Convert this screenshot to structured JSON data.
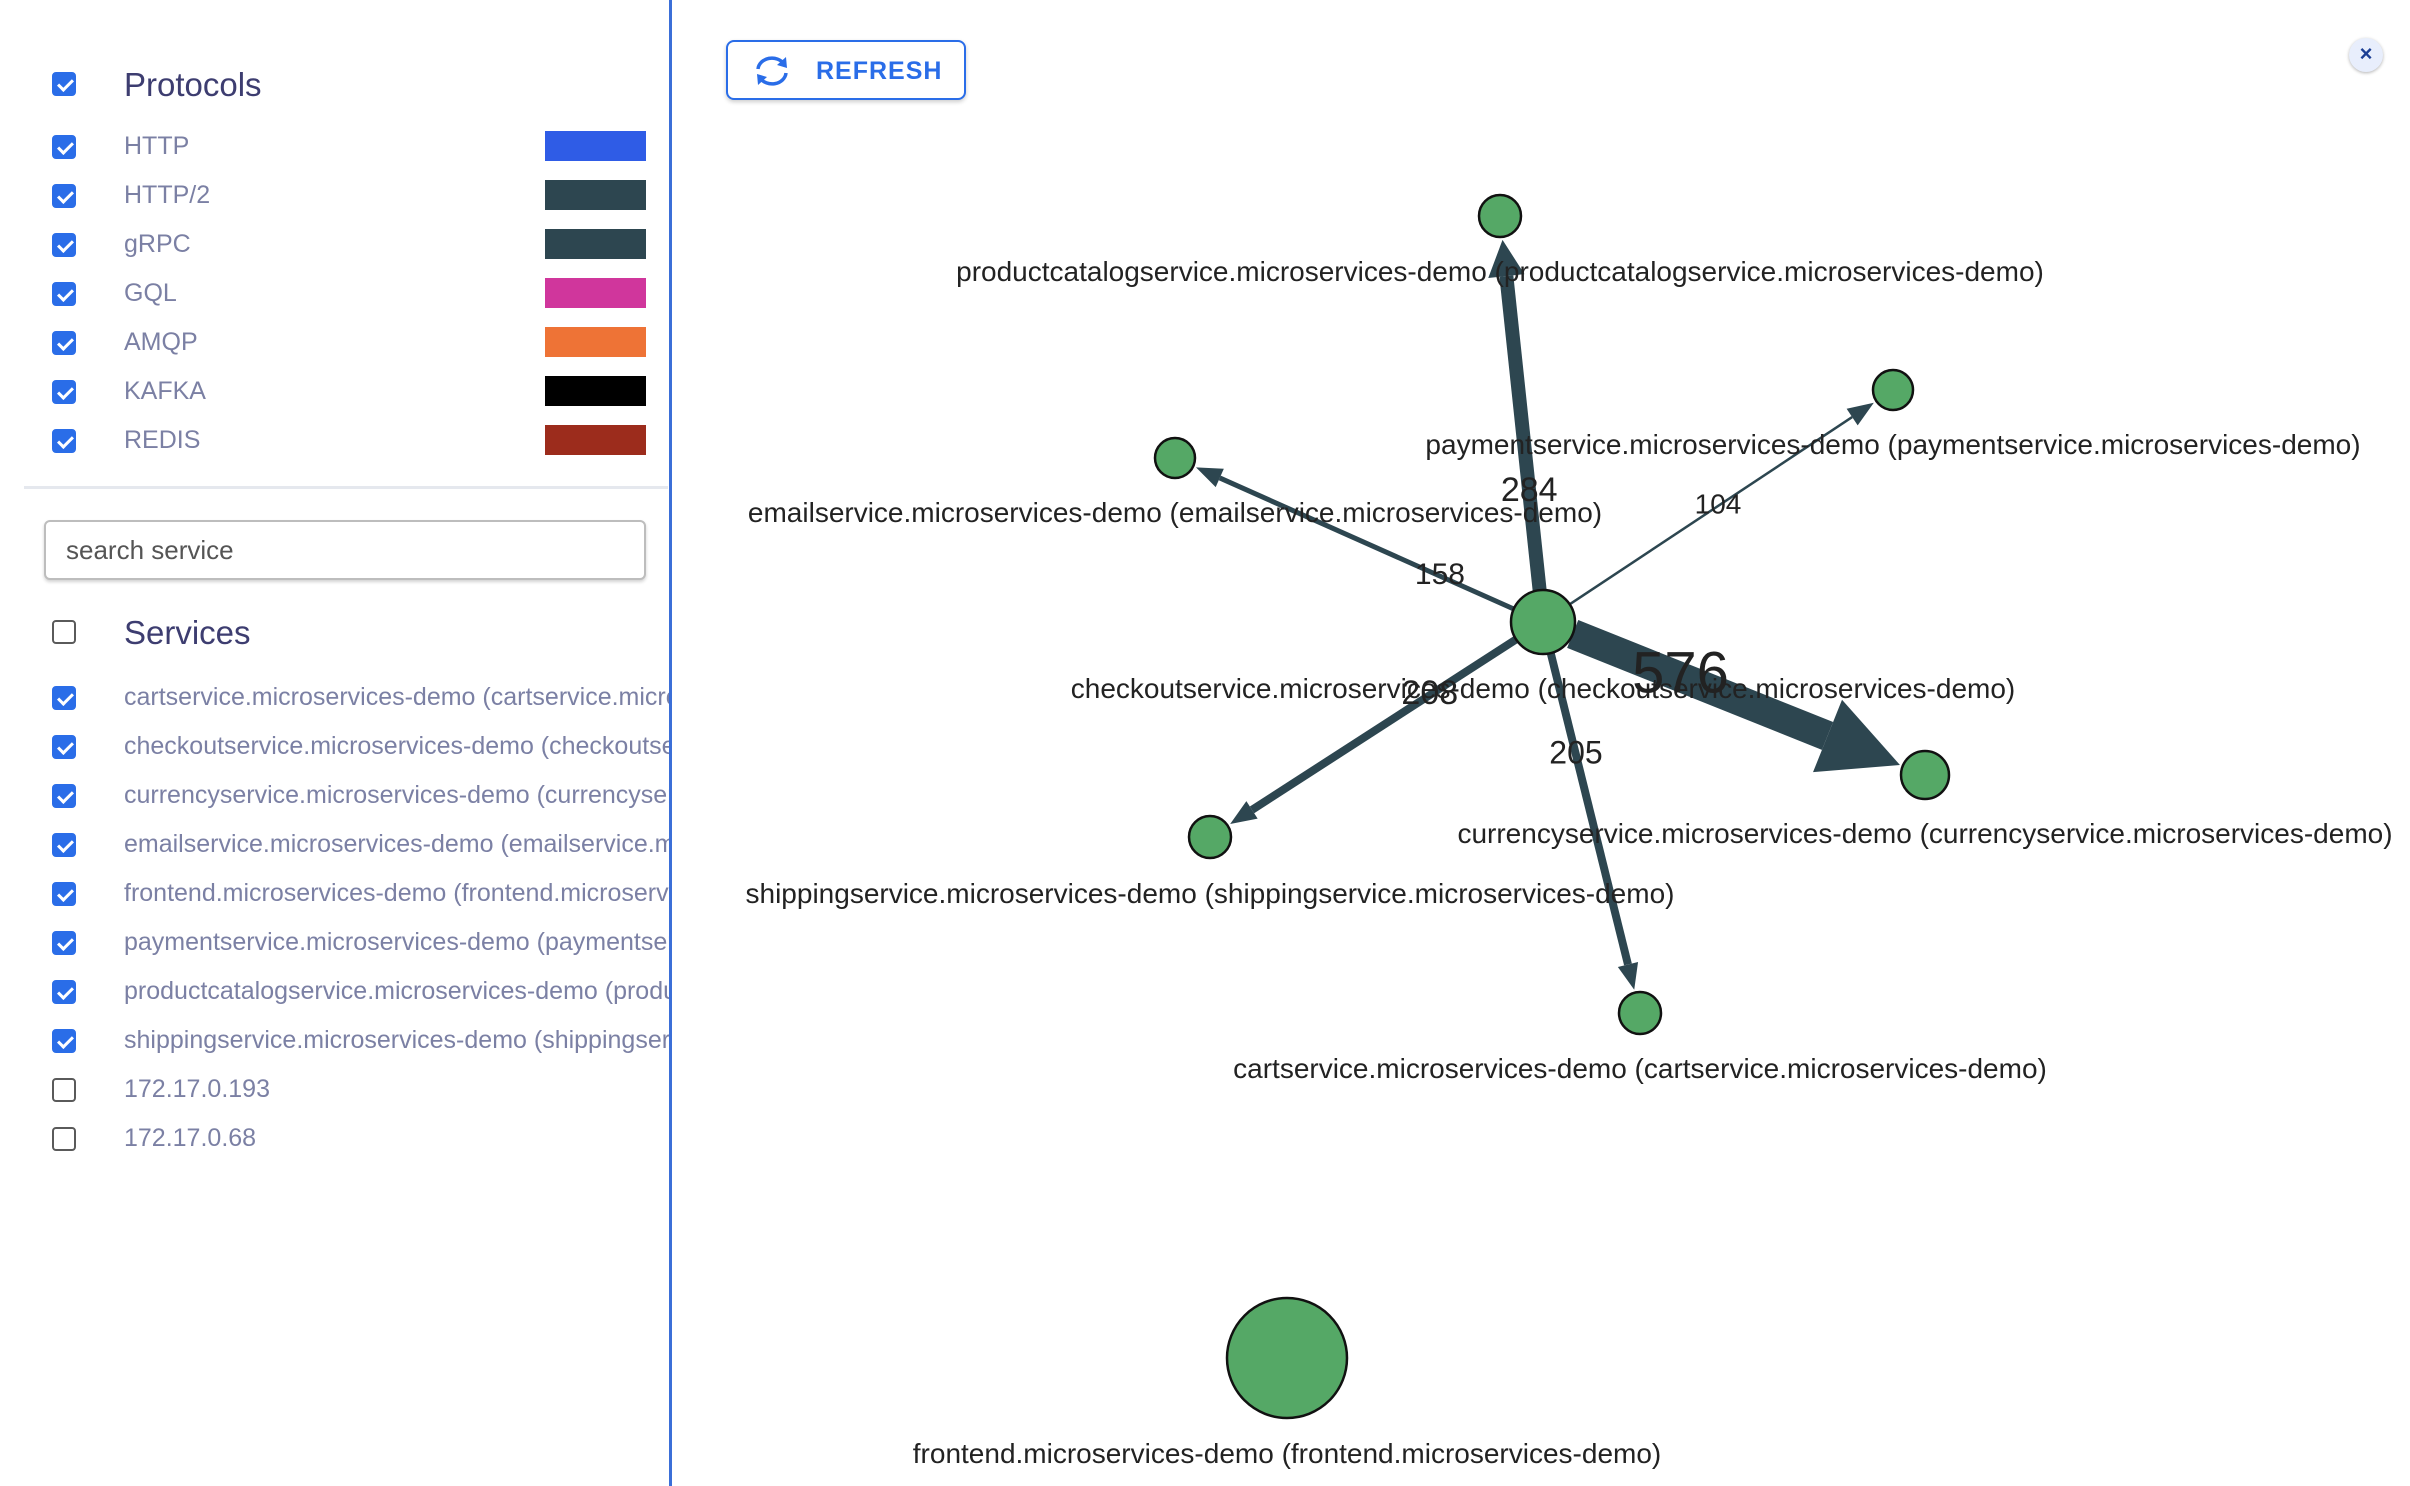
{
  "sidebar": {
    "protocols_title": "Protocols",
    "protocols": [
      {
        "label": "HTTP",
        "color": "#2f5ce6",
        "checked": true
      },
      {
        "label": "HTTP/2",
        "color": "#2d4650",
        "checked": true
      },
      {
        "label": "gRPC",
        "color": "#2d4650",
        "checked": true
      },
      {
        "label": "GQL",
        "color": "#d0369c",
        "checked": true
      },
      {
        "label": "AMQP",
        "color": "#ee7336",
        "checked": true
      },
      {
        "label": "KAFKA",
        "color": "#000000",
        "checked": true
      },
      {
        "label": "REDIS",
        "color": "#9c2c1c",
        "checked": true
      }
    ],
    "search_placeholder": "search service",
    "services_title": "Services",
    "services": [
      {
        "label": "cartservice.microservices-demo (cartservice.microservices-demo)",
        "checked": true
      },
      {
        "label": "checkoutservice.microservices-demo (checkoutservice.microservices-demo)",
        "checked": true
      },
      {
        "label": "currencyservice.microservices-demo (currencyservice.microservices-demo)",
        "checked": true
      },
      {
        "label": "emailservice.microservices-demo (emailservice.microservices-demo)",
        "checked": true
      },
      {
        "label": "frontend.microservices-demo (frontend.microservices-demo)",
        "checked": true
      },
      {
        "label": "paymentservice.microservices-demo (paymentservice.microservices-demo)",
        "checked": true
      },
      {
        "label": "productcatalogservice.microservices-demo (productcatalogservice.microservices-demo)",
        "checked": true
      },
      {
        "label": "shippingservice.microservices-demo (shippingservice.microservices-demo)",
        "checked": true
      },
      {
        "label": "172.17.0.193",
        "checked": false
      },
      {
        "label": "172.17.0.68",
        "checked": false
      }
    ]
  },
  "toolbar": {
    "refresh_label": "REFRESH",
    "close_label": "×"
  },
  "graph": {
    "node_color": "#55a866",
    "edge_color": "#2d4650",
    "nodes": [
      {
        "id": "productcatalogservice",
        "label": "productcatalogservice.microservices-demo (productcatalogservice.microservices-demo)"
      },
      {
        "id": "paymentservice",
        "label": "paymentservice.microservices-demo (paymentservice.microservices-demo)"
      },
      {
        "id": "emailservice",
        "label": "emailservice.microservices-demo (emailservice.microservices-demo)"
      },
      {
        "id": "checkoutservice",
        "label": "checkoutservice.microservices-demo (checkoutservice.microservices-demo)"
      },
      {
        "id": "currencyservice",
        "label": "currencyservice.microservices-demo (currencyservice.microservices-demo)"
      },
      {
        "id": "shippingservice",
        "label": "shippingservice.microservices-demo (shippingservice.microservices-demo)"
      },
      {
        "id": "cartservice",
        "label": "cartservice.microservices-demo (cartservice.microservices-demo)"
      },
      {
        "id": "frontend",
        "label": "frontend.microservices-demo (frontend.microservices-demo)"
      }
    ],
    "edges": [
      {
        "from": "checkoutservice",
        "to": "productcatalogservice",
        "count": "284"
      },
      {
        "from": "checkoutservice",
        "to": "paymentservice",
        "count": "104"
      },
      {
        "from": "checkoutservice",
        "to": "emailservice",
        "count": "158"
      },
      {
        "from": "checkoutservice",
        "to": "currencyservice",
        "count": "576"
      },
      {
        "from": "checkoutservice",
        "to": "shippingservice",
        "count": "208"
      },
      {
        "from": "checkoutservice",
        "to": "cartservice",
        "count": "205"
      }
    ]
  }
}
